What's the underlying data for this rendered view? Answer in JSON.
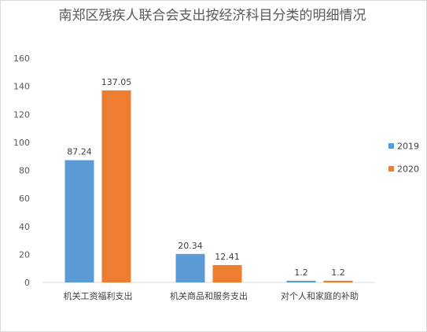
{
  "chart_data": {
    "type": "bar",
    "title": "南郑区残疾人联合会支出按经济科目分类的明细情况",
    "categories": [
      "机关工资福利支出",
      "机关商品和服务支出",
      "对个人和家庭的补助"
    ],
    "series": [
      {
        "name": "2019",
        "values": [
          87.24,
          20.34,
          1.2
        ],
        "labels": [
          "87.24",
          "20.34",
          "1.2"
        ],
        "color": "#5b9bd5"
      },
      {
        "name": "2020",
        "values": [
          137.05,
          12.41,
          1.2
        ],
        "labels": [
          "137.05",
          "12.41",
          "1.2"
        ],
        "color": "#ed7d31"
      }
    ],
    "ylim": [
      0,
      160
    ],
    "yticks": [
      "0",
      "20",
      "40",
      "60",
      "80",
      "100",
      "120",
      "140",
      "160"
    ],
    "grid": false,
    "legend_position": "right"
  }
}
